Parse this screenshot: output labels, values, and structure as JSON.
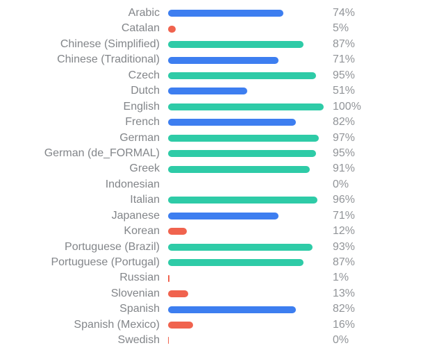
{
  "chart_data": {
    "type": "bar",
    "orientation": "horizontal",
    "title": "",
    "xlabel": "",
    "ylabel": "",
    "xlim": [
      0,
      100
    ],
    "grid": false,
    "legend": "none",
    "unit": "%",
    "colors": {
      "green": "#2ecba7",
      "blue": "#3d7ef0",
      "red": "#f0634e"
    },
    "bars": [
      {
        "label": "Arabic",
        "value": 74,
        "display": "74%",
        "color": "blue",
        "sliver": false
      },
      {
        "label": "Catalan",
        "value": 5,
        "display": "5%",
        "color": "red",
        "sliver": false
      },
      {
        "label": "Chinese (Simplified)",
        "value": 87,
        "display": "87%",
        "color": "green",
        "sliver": false
      },
      {
        "label": "Chinese (Traditional)",
        "value": 71,
        "display": "71%",
        "color": "blue",
        "sliver": false
      },
      {
        "label": "Czech",
        "value": 95,
        "display": "95%",
        "color": "green",
        "sliver": false
      },
      {
        "label": "Dutch",
        "value": 51,
        "display": "51%",
        "color": "blue",
        "sliver": false
      },
      {
        "label": "English",
        "value": 100,
        "display": "100%",
        "color": "green",
        "sliver": false
      },
      {
        "label": "French",
        "value": 82,
        "display": "82%",
        "color": "blue",
        "sliver": false
      },
      {
        "label": "German",
        "value": 97,
        "display": "97%",
        "color": "green",
        "sliver": false
      },
      {
        "label": "German (de_FORMAL)",
        "value": 95,
        "display": "95%",
        "color": "green",
        "sliver": false
      },
      {
        "label": "Greek",
        "value": 91,
        "display": "91%",
        "color": "green",
        "sliver": false
      },
      {
        "label": "Indonesian",
        "value": 0,
        "display": "0%",
        "color": "none",
        "sliver": false
      },
      {
        "label": "Italian",
        "value": 96,
        "display": "96%",
        "color": "green",
        "sliver": false
      },
      {
        "label": "Japanese",
        "value": 71,
        "display": "71%",
        "color": "blue",
        "sliver": false
      },
      {
        "label": "Korean",
        "value": 12,
        "display": "12%",
        "color": "red",
        "sliver": false
      },
      {
        "label": "Portuguese (Brazil)",
        "value": 93,
        "display": "93%",
        "color": "green",
        "sliver": false
      },
      {
        "label": "Portuguese (Portugal)",
        "value": 87,
        "display": "87%",
        "color": "green",
        "sliver": false
      },
      {
        "label": "Russian",
        "value": 1,
        "display": "1%",
        "color": "red",
        "sliver": false
      },
      {
        "label": "Slovenian",
        "value": 13,
        "display": "13%",
        "color": "red",
        "sliver": false
      },
      {
        "label": "Spanish",
        "value": 82,
        "display": "82%",
        "color": "blue",
        "sliver": false
      },
      {
        "label": "Spanish (Mexico)",
        "value": 16,
        "display": "16%",
        "color": "red",
        "sliver": false
      },
      {
        "label": "Swedish",
        "value": 0,
        "display": "0%",
        "color": "red",
        "sliver": true
      }
    ]
  }
}
